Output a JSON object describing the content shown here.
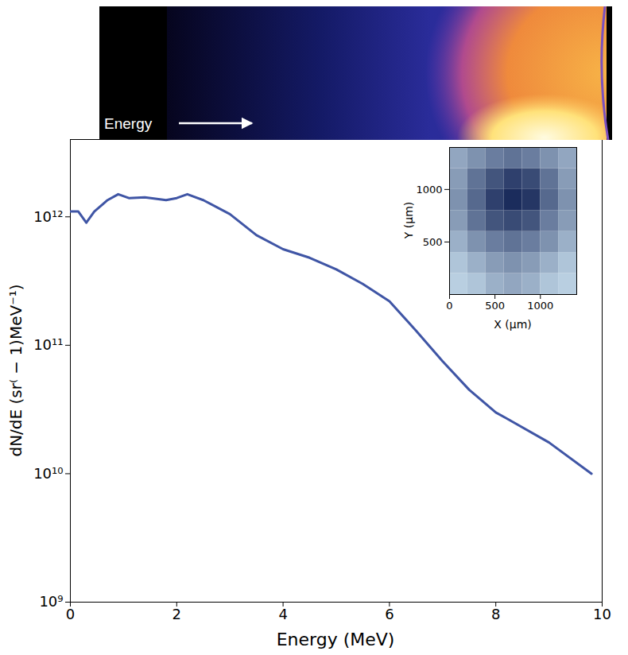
{
  "chart_data": [
    {
      "type": "line",
      "xlabel": "Energy (MeV)",
      "ylabel": "dN/dE (sr⁽ − 1)MeV⁻¹)",
      "annotations": [
        "Energy"
      ],
      "x": [
        0,
        0.15,
        0.3,
        0.45,
        0.7,
        0.9,
        1.1,
        1.4,
        1.8,
        2.0,
        2.2,
        2.5,
        3.0,
        3.5,
        4.0,
        4.5,
        5.0,
        5.5,
        6.0,
        6.5,
        7.0,
        7.5,
        8.0,
        8.2,
        9.0,
        9.8
      ],
      "values": [
        1100000000000.0,
        1100000000000.0,
        900000000000.0,
        1100000000000.0,
        1350000000000.0,
        1500000000000.0,
        1400000000000.0,
        1420000000000.0,
        1350000000000.0,
        1400000000000.0,
        1500000000000.0,
        1350000000000.0,
        1050000000000.0,
        720000000000.0,
        560000000000.0,
        480000000000.0,
        390000000000.0,
        300000000000.0,
        220000000000.0,
        130000000000.0,
        75000000000.0,
        45000000000.0,
        30000000000.0,
        27000000000.0,
        17500000000.0,
        10000000000.0
      ],
      "color": "#3f55a5",
      "log": "y",
      "xlim": [
        0,
        10
      ],
      "xticks": [
        0,
        2,
        4,
        6,
        8,
        10
      ],
      "ylim": [
        1000000000.0,
        4000000000000.0
      ],
      "yticks": [
        {
          "value": 1000000000.0,
          "label": "10⁹"
        },
        {
          "value": 10000000000.0,
          "label": "10¹⁰"
        },
        {
          "value": 100000000000.0,
          "label": "10¹¹"
        },
        {
          "value": 1000000000000.0,
          "label": "10¹²"
        }
      ]
    },
    {
      "type": "heatmap",
      "xlabel": "X (μm)",
      "ylabel": "Y (μm)",
      "xlim": [
        0,
        1400
      ],
      "ylim": [
        0,
        1400
      ],
      "xticks": [
        0,
        500,
        1000
      ],
      "yticks": [
        500,
        1000
      ],
      "x_edges": [
        0,
        200,
        400,
        600,
        800,
        1000,
        1200,
        1400
      ],
      "y_edges": [
        0,
        200,
        400,
        600,
        800,
        1000,
        1200,
        1400
      ],
      "cells": [
        [
          0.15,
          0.2,
          0.3,
          0.35,
          0.3,
          0.2,
          0.15
        ],
        [
          0.2,
          0.3,
          0.4,
          0.45,
          0.4,
          0.3,
          0.2
        ],
        [
          0.3,
          0.45,
          0.55,
          0.6,
          0.55,
          0.45,
          0.3
        ],
        [
          0.4,
          0.6,
          0.75,
          0.8,
          0.75,
          0.55,
          0.4
        ],
        [
          0.45,
          0.65,
          0.85,
          0.95,
          0.9,
          0.65,
          0.45
        ],
        [
          0.4,
          0.6,
          0.75,
          0.85,
          0.8,
          0.6,
          0.4
        ],
        [
          0.35,
          0.45,
          0.55,
          0.6,
          0.55,
          0.45,
          0.35
        ]
      ]
    }
  ]
}
